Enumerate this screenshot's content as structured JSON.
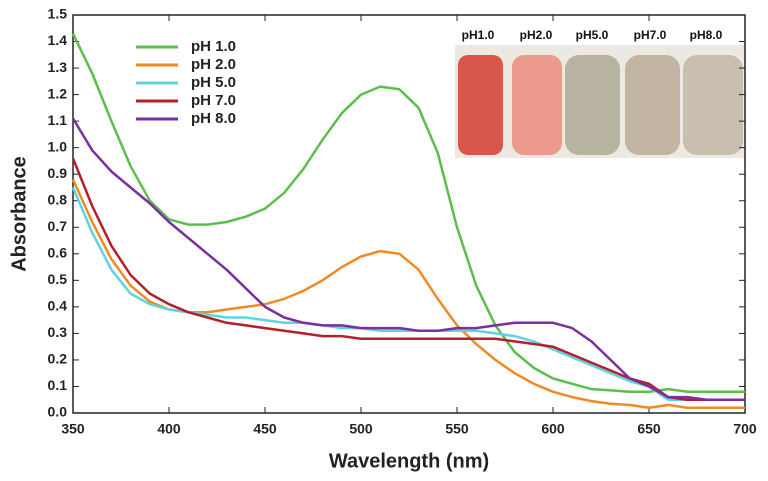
{
  "chart_data": {
    "type": "line",
    "xlabel": "Wavelength (nm)",
    "ylabel": "Absorbance",
    "x": [
      350,
      360,
      370,
      380,
      390,
      400,
      410,
      420,
      430,
      440,
      450,
      460,
      470,
      480,
      490,
      500,
      510,
      520,
      530,
      540,
      550,
      560,
      570,
      580,
      590,
      600,
      610,
      620,
      630,
      640,
      650,
      660,
      670,
      680,
      690,
      700
    ],
    "series": [
      {
        "name": "pH 1.0",
        "color": "#5cbf4a",
        "values": [
          1.43,
          1.28,
          1.1,
          0.93,
          0.8,
          0.73,
          0.71,
          0.71,
          0.72,
          0.74,
          0.77,
          0.83,
          0.92,
          1.03,
          1.13,
          1.2,
          1.23,
          1.22,
          1.15,
          0.98,
          0.7,
          0.48,
          0.33,
          0.23,
          0.17,
          0.13,
          0.11,
          0.09,
          0.085,
          0.08,
          0.08,
          0.09,
          0.08,
          0.08,
          0.08,
          0.08
        ]
      },
      {
        "name": "pH 2.0",
        "color": "#f08a24",
        "values": [
          0.88,
          0.72,
          0.58,
          0.48,
          0.42,
          0.39,
          0.38,
          0.38,
          0.39,
          0.4,
          0.41,
          0.43,
          0.46,
          0.5,
          0.55,
          0.59,
          0.61,
          0.6,
          0.54,
          0.43,
          0.33,
          0.26,
          0.2,
          0.15,
          0.11,
          0.08,
          0.06,
          0.045,
          0.035,
          0.03,
          0.02,
          0.03,
          0.02,
          0.02,
          0.02,
          0.02
        ]
      },
      {
        "name": "pH 5.0",
        "color": "#5fd3e0",
        "values": [
          0.85,
          0.68,
          0.54,
          0.45,
          0.41,
          0.39,
          0.38,
          0.37,
          0.36,
          0.36,
          0.35,
          0.34,
          0.34,
          0.33,
          0.32,
          0.32,
          0.31,
          0.31,
          0.31,
          0.31,
          0.31,
          0.31,
          0.3,
          0.29,
          0.27,
          0.24,
          0.21,
          0.18,
          0.15,
          0.12,
          0.1,
          0.05,
          0.05,
          0.05,
          0.05,
          0.05
        ]
      },
      {
        "name": "pH 7.0",
        "color": "#b3202a",
        "values": [
          0.96,
          0.78,
          0.63,
          0.52,
          0.45,
          0.41,
          0.38,
          0.36,
          0.34,
          0.33,
          0.32,
          0.31,
          0.3,
          0.29,
          0.29,
          0.28,
          0.28,
          0.28,
          0.28,
          0.28,
          0.28,
          0.28,
          0.28,
          0.27,
          0.26,
          0.25,
          0.22,
          0.19,
          0.16,
          0.13,
          0.11,
          0.06,
          0.05,
          0.05,
          0.05,
          0.05
        ]
      },
      {
        "name": "pH 8.0",
        "color": "#7b2fa0",
        "values": [
          1.11,
          0.99,
          0.91,
          0.85,
          0.79,
          0.72,
          0.66,
          0.6,
          0.54,
          0.47,
          0.4,
          0.36,
          0.34,
          0.33,
          0.33,
          0.32,
          0.32,
          0.32,
          0.31,
          0.31,
          0.32,
          0.32,
          0.33,
          0.34,
          0.34,
          0.34,
          0.32,
          0.27,
          0.2,
          0.13,
          0.1,
          0.06,
          0.06,
          0.05,
          0.05,
          0.05
        ]
      }
    ],
    "xlim": [
      350,
      700
    ],
    "xticks": [
      350,
      400,
      450,
      500,
      550,
      600,
      650,
      700
    ],
    "ylim": [
      0,
      1.5
    ],
    "yticks": [
      {
        "value": 0,
        "label": "0.0"
      },
      0.1,
      0.2,
      0.3,
      0.4,
      0.5,
      0.6,
      0.7,
      0.8,
      0.9,
      {
        "value": 1,
        "label": "1.0"
      },
      1.1,
      1.2,
      1.3,
      1.4,
      1.5
    ],
    "inset_labels": [
      "pH1.0",
      "pH2.0",
      "pH5.0",
      "pH7.0",
      "pH8.0"
    ]
  }
}
